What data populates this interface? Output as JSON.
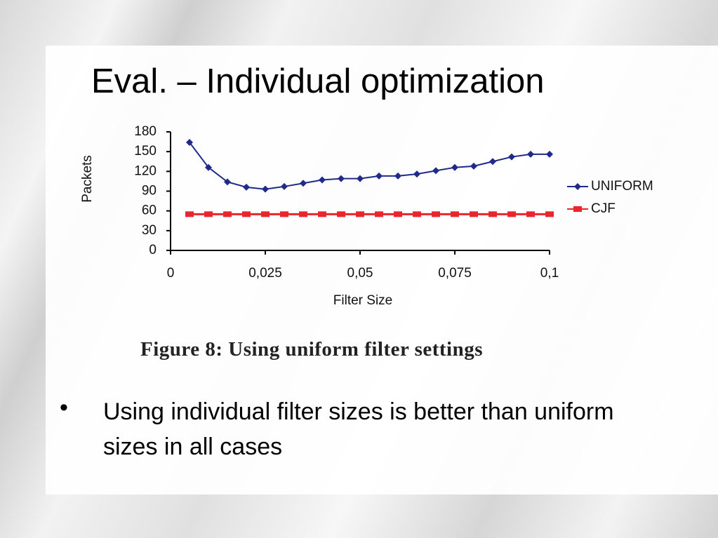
{
  "title": "Eval. – Individual optimization",
  "caption": "Figure 8: Using uniform filter settings",
  "bullets": [
    "Using individual filter sizes is better than uniform sizes in all cases"
  ],
  "chart_data": {
    "type": "line",
    "y_label": "Packets",
    "x_label": "Filter Size",
    "x": [
      0.005,
      0.01,
      0.015,
      0.02,
      0.025,
      0.03,
      0.035,
      0.04,
      0.045,
      0.05,
      0.055,
      0.06,
      0.065,
      0.07,
      0.075,
      0.08,
      0.085,
      0.09,
      0.095,
      0.1
    ],
    "series": [
      {
        "name": "UNIFORM",
        "color": "#1f2a8a",
        "marker": "diamond",
        "values": [
          164,
          126,
          104,
          96,
          93,
          97,
          102,
          107,
          109,
          109,
          113,
          113,
          116,
          121,
          126,
          128,
          135,
          142,
          146,
          146
        ]
      },
      {
        "name": "CJF",
        "color": "#e8262b",
        "marker": "square",
        "values": [
          55,
          55,
          55,
          55,
          55,
          55,
          55,
          55,
          55,
          55,
          55,
          55,
          55,
          55,
          55,
          55,
          55,
          55,
          55,
          55
        ]
      }
    ],
    "xlim": [
      0,
      0.1
    ],
    "xticks": [
      0,
      {
        "value": 0.025,
        "label": "0,025"
      },
      {
        "value": 0.05,
        "label": "0,05"
      },
      {
        "value": 0.075,
        "label": "0,075"
      },
      {
        "value": 0.1,
        "label": "0,1"
      }
    ],
    "ylim": [
      0,
      180
    ],
    "yticks": [
      0,
      30,
      60,
      90,
      120,
      150,
      180
    ],
    "grid": false,
    "legend": "right"
  }
}
